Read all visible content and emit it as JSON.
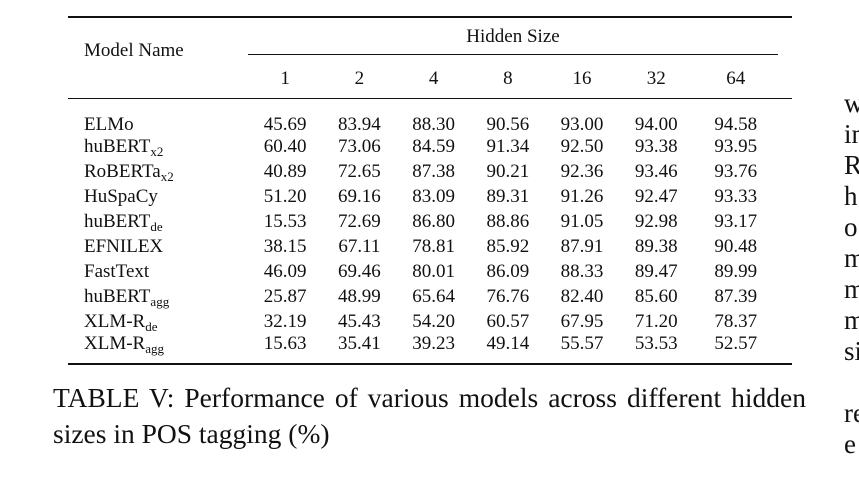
{
  "table": {
    "header_model": "Model Name",
    "header_group": "Hidden Size",
    "columns": [
      "1",
      "2",
      "4",
      "8",
      "16",
      "32",
      "64"
    ],
    "rows": [
      {
        "name": "ELMo",
        "sub": "",
        "values": [
          "45.69",
          "83.94",
          "88.30",
          "90.56",
          "93.00",
          "94.00",
          "94.58"
        ],
        "bold": [
          false,
          true,
          true,
          false,
          true,
          true,
          true
        ]
      },
      {
        "name": "huBERT",
        "sub": "x2",
        "values": [
          "60.40",
          "73.06",
          "84.59",
          "91.34",
          "92.50",
          "93.38",
          "93.95"
        ],
        "bold": [
          true,
          false,
          false,
          true,
          false,
          false,
          false
        ]
      },
      {
        "name": "RoBERTa",
        "sub": "x2",
        "values": [
          "40.89",
          "72.65",
          "87.38",
          "90.21",
          "92.36",
          "93.46",
          "93.76"
        ],
        "bold": [
          false,
          false,
          false,
          false,
          false,
          false,
          false
        ]
      },
      {
        "name": "HuSpaCy",
        "sub": "",
        "values": [
          "51.20",
          "69.16",
          "83.09",
          "89.31",
          "91.26",
          "92.47",
          "93.33"
        ],
        "bold": [
          false,
          false,
          false,
          false,
          false,
          false,
          false
        ]
      },
      {
        "name": "huBERT",
        "sub": "de",
        "values": [
          "15.53",
          "72.69",
          "86.80",
          "88.86",
          "91.05",
          "92.98",
          "93.17"
        ],
        "bold": [
          false,
          false,
          false,
          false,
          false,
          false,
          false
        ]
      },
      {
        "name": "EFNILEX",
        "sub": "",
        "values": [
          "38.15",
          "67.11",
          "78.81",
          "85.92",
          "87.91",
          "89.38",
          "90.48"
        ],
        "bold": [
          false,
          false,
          false,
          false,
          false,
          false,
          false
        ]
      },
      {
        "name": "FastText",
        "sub": "",
        "values": [
          "46.09",
          "69.46",
          "80.01",
          "86.09",
          "88.33",
          "89.47",
          "89.99"
        ],
        "bold": [
          false,
          false,
          false,
          false,
          false,
          false,
          false
        ]
      },
      {
        "name": "huBERT",
        "sub": "agg",
        "values": [
          "25.87",
          "48.99",
          "65.64",
          "76.76",
          "82.40",
          "85.60",
          "87.39"
        ],
        "bold": [
          false,
          false,
          false,
          false,
          false,
          false,
          false
        ]
      },
      {
        "name": "XLM-R",
        "sub": "de",
        "values": [
          "32.19",
          "45.43",
          "54.20",
          "60.57",
          "67.95",
          "71.20",
          "78.37"
        ],
        "bold": [
          false,
          false,
          false,
          false,
          false,
          false,
          false
        ]
      },
      {
        "name": "XLM-R",
        "sub": "agg",
        "values": [
          "15.63",
          "35.41",
          "39.23",
          "49.14",
          "55.57",
          "53.53",
          "52.57"
        ],
        "bold": [
          false,
          false,
          false,
          false,
          false,
          false,
          false
        ]
      }
    ]
  },
  "caption": "TABLE V: Performance of various models across different hidden sizes in POS tagging (%)",
  "side_text": [
    "w",
    "in",
    "R",
    "h",
    "o",
    "m",
    "m",
    "m",
    "si",
    "",
    "re",
    "e"
  ]
}
